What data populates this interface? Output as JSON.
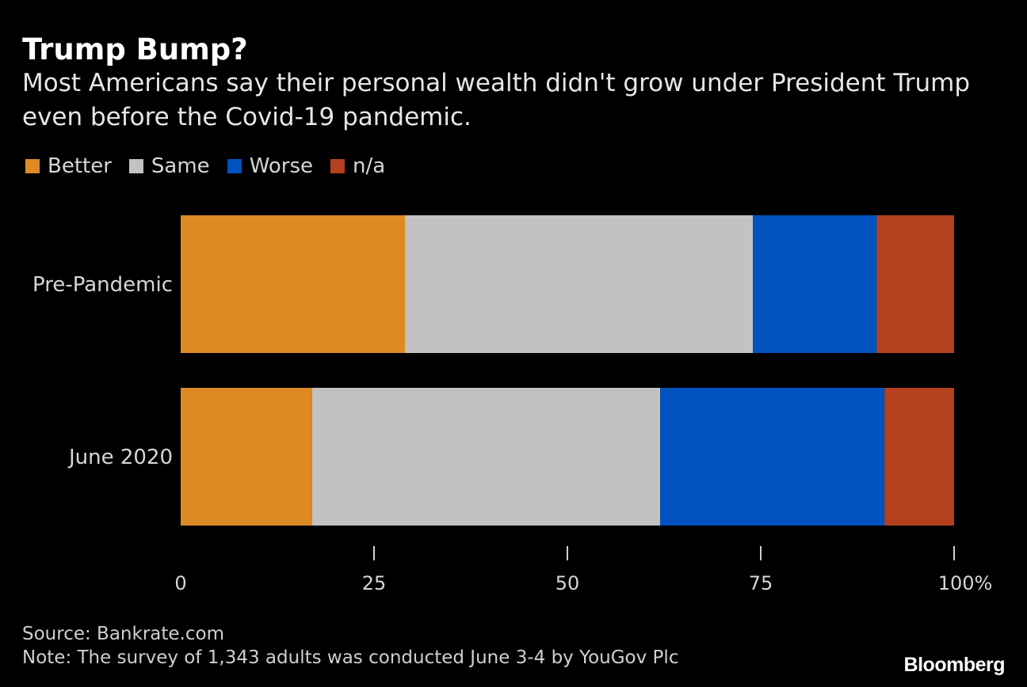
{
  "chart_data": {
    "type": "bar",
    "orientation": "horizontal",
    "stacked": true,
    "title": "Trump Bump?",
    "subtitle": "Most Americans say their personal wealth didn't grow under President Trump even before the Covid-19 pandemic.",
    "categories": [
      "Pre-Pandemic",
      "June 2020"
    ],
    "series": [
      {
        "name": "Better",
        "color": "#dd8a25",
        "values": [
          29,
          17
        ]
      },
      {
        "name": "Same",
        "color": "#c2c2c2",
        "values": [
          45,
          45
        ]
      },
      {
        "name": "Worse",
        "color": "#0052bf",
        "values": [
          16,
          29
        ]
      },
      {
        "name": "n/a",
        "color": "#b4401f",
        "values": [
          10,
          9
        ]
      }
    ],
    "xlim": [
      0,
      100
    ],
    "ticks": [
      {
        "value": 0,
        "label": "0"
      },
      {
        "value": 25,
        "label": "25"
      },
      {
        "value": 50,
        "label": "50"
      },
      {
        "value": 75,
        "label": "75"
      },
      {
        "value": 100,
        "label": "100%"
      }
    ],
    "grid": false,
    "legend_position": "top-left"
  },
  "footer": {
    "source": "Source: Bankrate.com",
    "note": "Note: The survey of 1,343 adults was conducted June 3-4 by YouGov Plc"
  },
  "brand": "Bloomberg"
}
